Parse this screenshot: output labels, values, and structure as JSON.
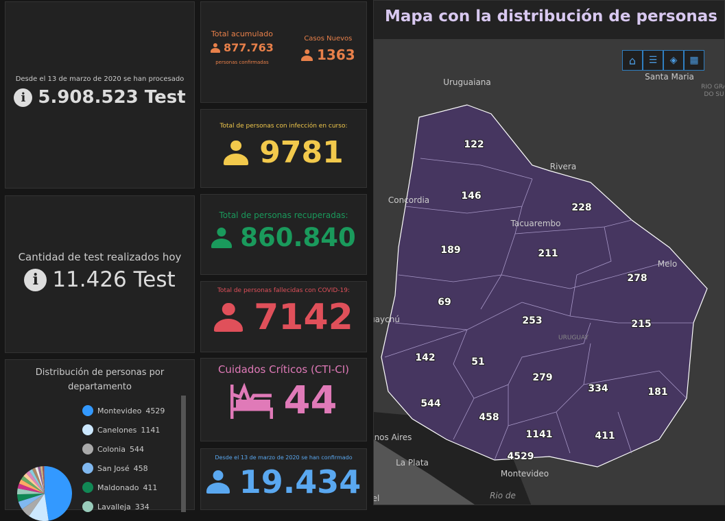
{
  "tests_total": {
    "caption": "Desde el 13 de marzo de 2020 se han procesado",
    "value": "5.908.523 Test",
    "icon": "info-icon"
  },
  "tests_today": {
    "caption": "Cantidad de test realizados hoy",
    "value": "11.426 Test",
    "icon": "info-icon"
  },
  "accumulated": {
    "label": "Total acumulado",
    "value": "877.763",
    "sub": "personas confirmadas",
    "new_label": "Casos Nuevos",
    "new_value": "1363",
    "color": "#e8804a"
  },
  "active": {
    "label": "Total de personas con infección en curso:",
    "value": "9781",
    "color": "#f2c94c"
  },
  "recovered": {
    "label": "Total de personas recuperadas:",
    "value": "860.840",
    "color": "#1a9a5c"
  },
  "deceased": {
    "label": "Total de personas fallecidas con COVID-19:",
    "value": "7142",
    "color": "#e0505a"
  },
  "critical": {
    "label": "Cuidados Críticos (CTI-CI)",
    "value": "44",
    "color": "#e07ab8",
    "icon": "hospital-bed-icon"
  },
  "confirmed": {
    "label": "Desde el 13 de marzo de 2020 se han confirmado",
    "value": "19.434",
    "color": "#5aa8f0"
  },
  "distribution": {
    "title": "Distribución de personas por departamento",
    "legend": [
      {
        "name": "Montevideo",
        "value": "4529",
        "color": "#3399ff"
      },
      {
        "name": "Canelones",
        "value": "1141",
        "color": "#cce8ff"
      },
      {
        "name": "Colonia",
        "value": "544",
        "color": "#aaaaaa"
      },
      {
        "name": "San José",
        "value": "458",
        "color": "#80b8f0"
      },
      {
        "name": "Maldonado",
        "value": "411",
        "color": "#118855"
      },
      {
        "name": "Lavalleja",
        "value": "334",
        "color": "#99ccbb"
      }
    ]
  },
  "map": {
    "title": "Mapa con la distribución de personas",
    "toolbar": [
      "home-icon",
      "legend-icon",
      "layers-icon",
      "qr-icon"
    ],
    "places": [
      "Uruguaiana",
      "Santa Maria",
      "RIO GRA",
      "DO SU",
      "Rivera",
      "Concordia",
      "Tacuarembo",
      "Melo",
      "uaychú",
      "URUGUAY",
      "nos Aires",
      "La Plata",
      "Montevideo",
      "Rio de",
      "el"
    ],
    "counts": [
      "122",
      "146",
      "228",
      "189",
      "211",
      "278",
      "69",
      "253",
      "215",
      "142",
      "51",
      "279",
      "334",
      "181",
      "544",
      "458",
      "1141",
      "411",
      "4529"
    ]
  }
}
